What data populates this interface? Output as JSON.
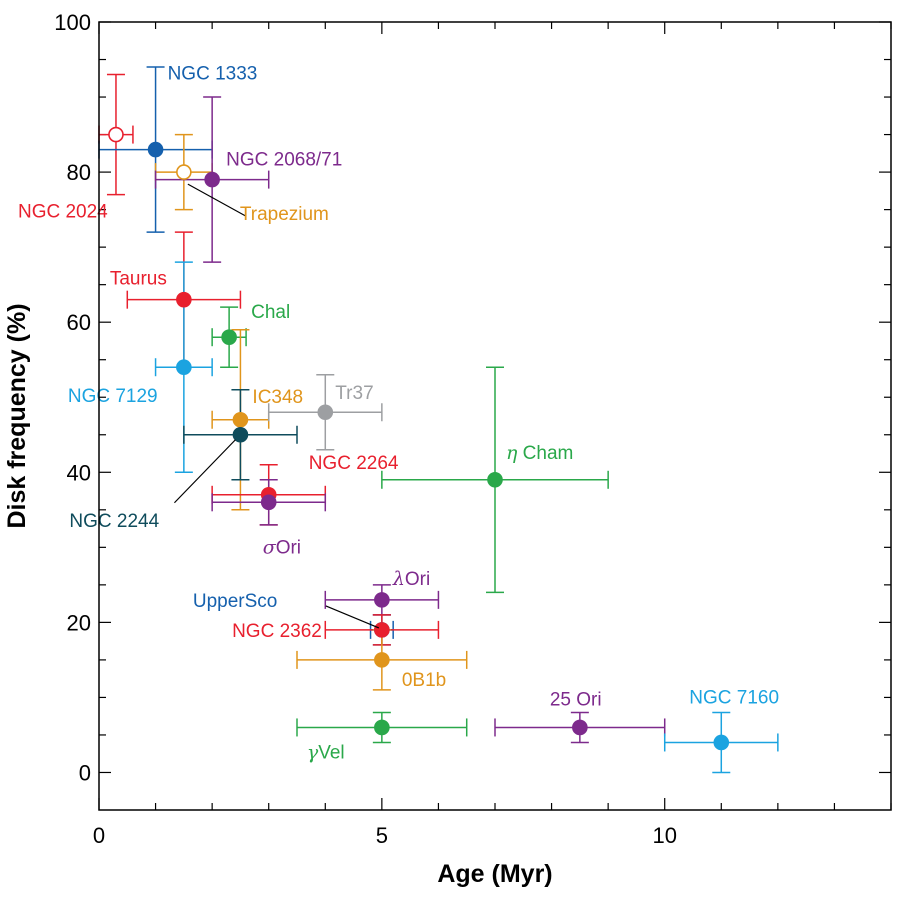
{
  "chart_data": {
    "type": "scatter",
    "xlabel": "Age (Myr)",
    "ylabel": "Disk frequency (%)",
    "xlim": [
      0,
      14
    ],
    "ylim": [
      -5,
      100
    ],
    "x_ticks": [
      0,
      5,
      10
    ],
    "x_tick_labels": [
      "0",
      "5",
      "10"
    ],
    "y_ticks": [
      0,
      20,
      40,
      60,
      80,
      100
    ],
    "y_tick_labels": [
      "0",
      "20",
      "40",
      "60",
      "80",
      "100"
    ],
    "x_minor_step": 1,
    "y_minor_step": 5,
    "grid": false,
    "legend": "none",
    "points": [
      {
        "label": "NGC 2024",
        "x": 0.3,
        "y": 85,
        "xerr": [
          0.3,
          0.3
        ],
        "yerr": [
          8,
          8
        ],
        "color": "#e8202e",
        "filled": false
      },
      {
        "label": "NGC 1333",
        "x": 1.0,
        "y": 83,
        "xerr": [
          1.0,
          1.0
        ],
        "yerr": [
          11,
          11
        ],
        "color": "#1560ad",
        "filled": true
      },
      {
        "label": "Trapezium",
        "x": 1.5,
        "y": 80,
        "xerr": [
          0.5,
          0.5
        ],
        "yerr": [
          5,
          5
        ],
        "color": "#e0951c",
        "filled": false
      },
      {
        "label": "NGC 2068/71",
        "x": 2.0,
        "y": 79,
        "xerr": [
          1.0,
          1.0
        ],
        "yerr": [
          11,
          11
        ],
        "color": "#7d2a8c",
        "filled": true
      },
      {
        "label": "Taurus",
        "x": 1.5,
        "y": 63,
        "xerr": [
          1.0,
          1.0
        ],
        "yerr": [
          9,
          9
        ],
        "color": "#e8202e",
        "filled": true
      },
      {
        "label": "Chal",
        "x": 2.3,
        "y": 58,
        "xerr": [
          0.3,
          0.3
        ],
        "yerr": [
          4,
          4
        ],
        "color": "#2aa84a",
        "filled": true
      },
      {
        "label": "NGC 7129",
        "x": 1.5,
        "y": 54,
        "xerr": [
          0.5,
          0.5
        ],
        "yerr": [
          14,
          14
        ],
        "color": "#1ba3e0",
        "filled": true
      },
      {
        "label": "IC348",
        "x": 2.5,
        "y": 47,
        "xerr": [
          0.5,
          0.5
        ],
        "yerr": [
          12,
          12
        ],
        "color": "#e0951c",
        "filled": true
      },
      {
        "label": "Tr37",
        "x": 4.0,
        "y": 48,
        "xerr": [
          1.0,
          1.0
        ],
        "yerr": [
          5,
          5
        ],
        "color": "#9d9fa2",
        "filled": true
      },
      {
        "label": "NGC 2244",
        "x": 2.5,
        "y": 45,
        "xerr": [
          1.0,
          1.0
        ],
        "yerr": [
          6,
          6
        ],
        "color": "#0f4c5c",
        "filled": true
      },
      {
        "label": "NGC 2264",
        "x": 3.0,
        "y": 37,
        "xerr": [
          1.0,
          1.0
        ],
        "yerr": [
          4,
          4
        ],
        "color": "#e8202e",
        "filled": true
      },
      {
        "label": "σOri",
        "x": 3.0,
        "y": 36,
        "xerr": [
          1.0,
          1.0
        ],
        "yerr": [
          3,
          3
        ],
        "color": "#7d2a8c",
        "filled": true
      },
      {
        "label": "η Cham",
        "x": 7.0,
        "y": 39,
        "xerr": [
          2.0,
          2.0
        ],
        "yerr": [
          15,
          15
        ],
        "color": "#2aa84a",
        "filled": true
      },
      {
        "label": "λOri",
        "x": 5.0,
        "y": 23,
        "xerr": [
          1.0,
          1.0
        ],
        "yerr": [
          2,
          2
        ],
        "color": "#7d2a8c",
        "filled": true
      },
      {
        "label": "UpperSco",
        "x": 5.0,
        "y": 19,
        "xerr": [
          0.2,
          0.2
        ],
        "yerr": [
          2,
          2
        ],
        "color": "#1560ad",
        "filled": true
      },
      {
        "label": "NGC 2362",
        "x": 5.0,
        "y": 19,
        "xerr": [
          1.0,
          1.0
        ],
        "yerr": [
          2,
          2
        ],
        "color": "#e8202e",
        "filled": true
      },
      {
        "label": "0B1b",
        "x": 5.0,
        "y": 15,
        "xerr": [
          1.5,
          1.5
        ],
        "yerr": [
          4,
          4
        ],
        "color": "#e0951c",
        "filled": true
      },
      {
        "label": "γVel",
        "x": 5.0,
        "y": 6,
        "xerr": [
          1.5,
          1.5
        ],
        "yerr": [
          2,
          2
        ],
        "color": "#2aa84a",
        "filled": true
      },
      {
        "label": "25 Ori",
        "x": 8.5,
        "y": 6,
        "xerr": [
          1.5,
          1.5
        ],
        "yerr": [
          2,
          2
        ],
        "color": "#7d2a8c",
        "filled": true
      },
      {
        "label": "NGC 7160",
        "x": 11.0,
        "y": 4,
        "xerr": [
          1.0,
          1.0
        ],
        "yerr": [
          4,
          4
        ],
        "color": "#1ba3e0",
        "filled": true
      }
    ]
  }
}
